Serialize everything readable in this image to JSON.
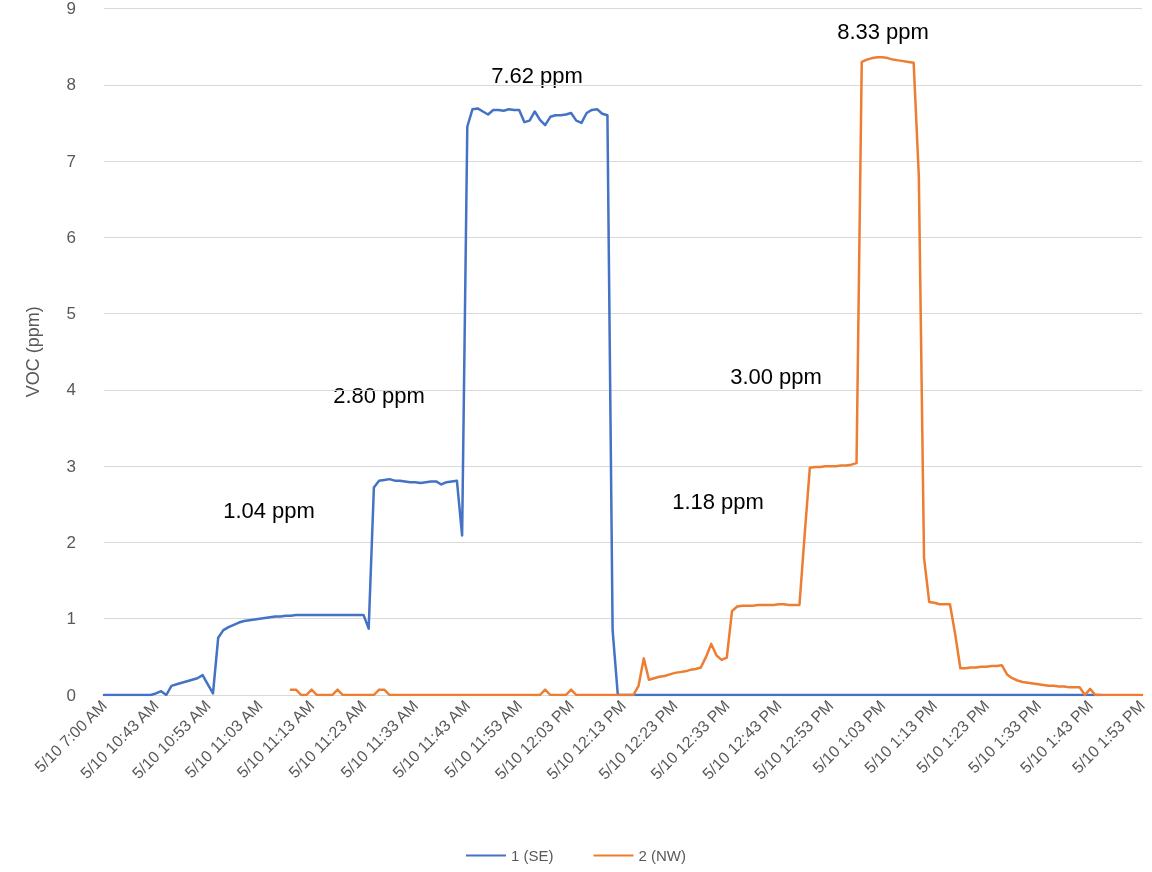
{
  "chart_data": {
    "type": "line",
    "ylabel": "VOC (ppm)",
    "ylim": [
      0,
      9
    ],
    "yticks": [
      0,
      1,
      2,
      3,
      4,
      5,
      6,
      7,
      8,
      9
    ],
    "grid": "y",
    "legend": "bottom",
    "marker": "none",
    "line_style": "solid",
    "categories": [
      "5/10 7:00 AM",
      null,
      null,
      null,
      null,
      null,
      null,
      null,
      null,
      null,
      "5/10 10:43 AM",
      null,
      null,
      null,
      null,
      null,
      null,
      null,
      null,
      null,
      "5/10 10:53 AM",
      null,
      null,
      null,
      null,
      null,
      null,
      null,
      null,
      null,
      "5/10 11:03 AM",
      null,
      null,
      null,
      null,
      null,
      null,
      null,
      null,
      null,
      "5/10 11:13 AM",
      null,
      null,
      null,
      null,
      null,
      null,
      null,
      null,
      null,
      "5/10 11:23 AM",
      null,
      null,
      null,
      null,
      null,
      null,
      null,
      null,
      null,
      "5/10 11:33 AM",
      null,
      null,
      null,
      null,
      null,
      null,
      null,
      null,
      null,
      "5/10 11:43 AM",
      null,
      null,
      null,
      null,
      null,
      null,
      null,
      null,
      null,
      "5/10 11:53 AM",
      null,
      null,
      null,
      null,
      null,
      null,
      null,
      null,
      null,
      "5/10 12:03 PM",
      null,
      null,
      null,
      null,
      null,
      null,
      null,
      null,
      null,
      "5/10 12:13 PM",
      null,
      null,
      null,
      null,
      null,
      null,
      null,
      null,
      null,
      "5/10 12:23 PM",
      null,
      null,
      null,
      null,
      null,
      null,
      null,
      null,
      null,
      "5/10 12:33 PM",
      null,
      null,
      null,
      null,
      null,
      null,
      null,
      null,
      null,
      "5/10 12:43 PM",
      null,
      null,
      null,
      null,
      null,
      null,
      null,
      null,
      null,
      "5/10 12:53 PM",
      null,
      null,
      null,
      null,
      null,
      null,
      null,
      null,
      null,
      "5/10 1:03 PM",
      null,
      null,
      null,
      null,
      null,
      null,
      null,
      null,
      null,
      "5/10 1:13 PM",
      null,
      null,
      null,
      null,
      null,
      null,
      null,
      null,
      null,
      "5/10 1:23 PM",
      null,
      null,
      null,
      null,
      null,
      null,
      null,
      null,
      null,
      "5/10 1:33 PM",
      null,
      null,
      null,
      null,
      null,
      null,
      null,
      null,
      null,
      "5/10 1:43 PM",
      null,
      null,
      null,
      null,
      null,
      null,
      null,
      null,
      null,
      "5/10 1:53 PM"
    ],
    "series": [
      {
        "name": "1 (SE)",
        "color": "#4472c4",
        "values": [
          0,
          0,
          0,
          0,
          0,
          0,
          0,
          0,
          0,
          0,
          0.02,
          0.05,
          0,
          0.12,
          0.14,
          0.16,
          0.18,
          0.2,
          0.22,
          0.26,
          0.14,
          0.02,
          0.75,
          0.85,
          0.89,
          0.92,
          0.95,
          0.97,
          0.98,
          0.99,
          1.0,
          1.01,
          1.02,
          1.03,
          1.03,
          1.04,
          1.04,
          1.05,
          1.05,
          1.05,
          1.05,
          1.05,
          1.05,
          1.05,
          1.05,
          1.05,
          1.05,
          1.05,
          1.05,
          1.05,
          1.05,
          0.87,
          2.72,
          2.81,
          2.82,
          2.83,
          2.81,
          2.81,
          2.8,
          2.79,
          2.79,
          2.78,
          2.79,
          2.8,
          2.8,
          2.76,
          2.79,
          2.8,
          2.81,
          2.09,
          7.45,
          7.68,
          7.69,
          7.65,
          7.61,
          7.67,
          7.67,
          7.66,
          7.68,
          7.67,
          7.67,
          7.51,
          7.53,
          7.65,
          7.54,
          7.47,
          7.58,
          7.6,
          7.6,
          7.61,
          7.63,
          7.53,
          7.5,
          7.63,
          7.67,
          7.68,
          7.62,
          7.6,
          0.85,
          0,
          0,
          0,
          0,
          0,
          0,
          0,
          0,
          0,
          0,
          0,
          0,
          0,
          0,
          0,
          0,
          0,
          0,
          0,
          0,
          0,
          0,
          0,
          0,
          0,
          0,
          0,
          0,
          0,
          0,
          0,
          0,
          0,
          0,
          0,
          0,
          0,
          0,
          0,
          0,
          0,
          0,
          0,
          0,
          0,
          0,
          0,
          0,
          0,
          0,
          0,
          0,
          0,
          0,
          0,
          0,
          0,
          0,
          0,
          0,
          0,
          0,
          0,
          0,
          0,
          0,
          0,
          0,
          0,
          0,
          0,
          0,
          0,
          0,
          0,
          0,
          0,
          0,
          0,
          0,
          0,
          0,
          0,
          0,
          0,
          0,
          0,
          0,
          0,
          0,
          0,
          0,
          0,
          0,
          null,
          null,
          null,
          null,
          null,
          null,
          null,
          null
        ]
      },
      {
        "name": "2 (NW)",
        "color": "#ed7d31",
        "values": [
          null,
          null,
          null,
          null,
          null,
          null,
          null,
          null,
          null,
          null,
          null,
          null,
          null,
          null,
          null,
          null,
          null,
          null,
          null,
          null,
          null,
          null,
          null,
          null,
          null,
          null,
          null,
          null,
          null,
          null,
          null,
          null,
          null,
          null,
          null,
          null,
          0.07,
          0.07,
          0,
          0,
          0.07,
          0,
          0,
          0,
          0,
          0.07,
          0,
          0,
          0,
          0,
          0,
          0,
          0,
          0.07,
          0.07,
          0,
          0,
          0,
          0,
          0,
          0,
          0,
          0,
          0,
          0,
          0,
          0,
          0,
          0,
          0,
          0,
          0,
          0,
          0,
          0,
          0,
          0,
          0,
          0,
          0,
          0,
          0,
          0,
          0,
          0,
          0.07,
          0,
          0,
          0,
          0,
          0.07,
          0,
          0,
          0,
          0,
          0,
          0,
          0,
          0,
          0,
          0,
          0,
          0,
          0.12,
          0.48,
          0.2,
          0.22,
          0.24,
          0.25,
          0.27,
          0.29,
          0.3,
          0.31,
          0.33,
          0.34,
          0.36,
          0.5,
          0.67,
          0.52,
          0.46,
          0.49,
          1.1,
          1.16,
          1.17,
          1.17,
          1.17,
          1.18,
          1.18,
          1.18,
          1.18,
          1.19,
          1.19,
          1.18,
          1.18,
          1.18,
          2.1,
          2.98,
          2.99,
          2.99,
          3.0,
          3.0,
          3.0,
          3.01,
          3.01,
          3.02,
          3.04,
          8.3,
          8.33,
          8.35,
          8.36,
          8.36,
          8.35,
          8.33,
          8.32,
          8.31,
          8.3,
          8.29,
          6.8,
          1.8,
          1.22,
          1.21,
          1.19,
          1.19,
          1.19,
          0.8,
          0.35,
          0.35,
          0.36,
          0.36,
          0.37,
          0.37,
          0.38,
          0.38,
          0.39,
          0.27,
          0.22,
          0.19,
          0.17,
          0.16,
          0.15,
          0.14,
          0.13,
          0.12,
          0.12,
          0.11,
          0.11,
          0.1,
          0.1,
          0.1,
          0,
          0.08,
          0,
          0,
          0,
          0,
          0,
          0,
          0,
          0,
          0,
          0
        ]
      }
    ],
    "annotations": [
      "1.04 ppm",
      "2.80 ppm",
      "7.62 ppm",
      "1.18 ppm",
      "3.00 ppm",
      "8.33 ppm"
    ]
  }
}
